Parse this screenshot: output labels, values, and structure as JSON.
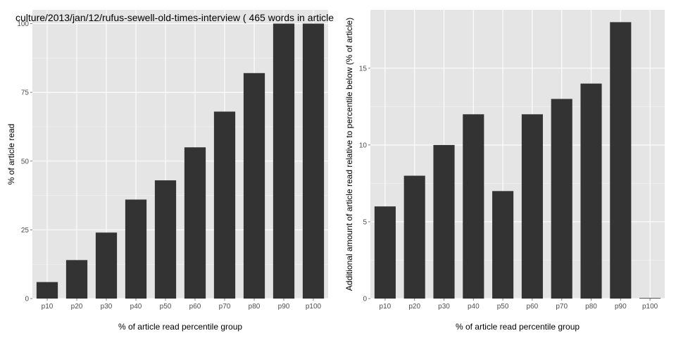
{
  "chart_data": [
    {
      "type": "bar",
      "title": "culture/2013/jan/12/rufus-sewell-old-times-interview ( 465 words in article",
      "xlabel": "% of article read percentile group",
      "ylabel": "% of article read",
      "categories": [
        "p10",
        "p20",
        "p30",
        "p40",
        "p50",
        "p60",
        "p70",
        "p80",
        "p90",
        "p100"
      ],
      "values": [
        6,
        14,
        24,
        36,
        43,
        55,
        68,
        82,
        100,
        100
      ],
      "ylim": [
        0,
        105
      ],
      "yticks": [
        0,
        25,
        50,
        75,
        100
      ],
      "bar_color": "#333333",
      "panel_bg": "#e5e5e5",
      "grid_color": "#ffffff",
      "grid": true
    },
    {
      "type": "bar",
      "title": "",
      "xlabel": "% of article read percentile group",
      "ylabel": "Additional amount of article read relative to percentile below (% of article)",
      "categories": [
        "p10",
        "p20",
        "p30",
        "p40",
        "p50",
        "p60",
        "p70",
        "p80",
        "p90",
        "p100"
      ],
      "values": [
        6,
        8,
        10,
        12,
        7,
        12,
        13,
        14,
        18,
        0
      ],
      "ylim": [
        0,
        18.8
      ],
      "yticks": [
        0,
        5,
        10,
        15
      ],
      "bar_color": "#333333",
      "panel_bg": "#e5e5e5",
      "grid_color": "#ffffff",
      "grid": true
    }
  ]
}
